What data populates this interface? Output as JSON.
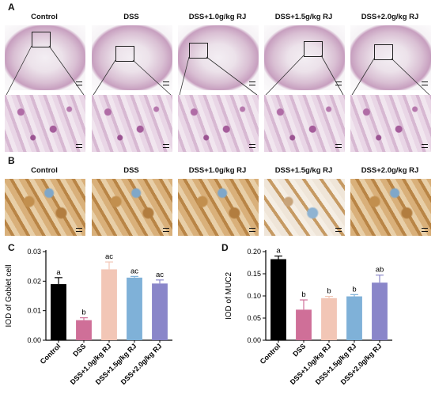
{
  "panels": {
    "A": "A",
    "B": "B",
    "C": "C",
    "D": "D"
  },
  "columns": [
    "Control",
    "DSS",
    "DSS+1.0g/kg RJ",
    "DSS+1.5g/kg RJ",
    "DSS+2.0g/kg RJ"
  ],
  "chart_data": [
    {
      "type": "bar",
      "panel": "C",
      "ylabel": "IOD of Goblet cell",
      "categories": [
        "Control",
        "DSS",
        "DSS+1.0g/kg RJ",
        "DSS+1.5g/kg RJ",
        "DSS+2.0g/kg RJ"
      ],
      "values": [
        0.019,
        0.0068,
        0.024,
        0.0212,
        0.0192
      ],
      "errors": [
        0.0022,
        0.0008,
        0.0025,
        0.0004,
        0.0012
      ],
      "letters": [
        "a",
        "b",
        "ac",
        "ac",
        "ac"
      ],
      "colors": [
        "#000000",
        "#cf6f98",
        "#f2c6b6",
        "#7fb1d8",
        "#8a86c9"
      ],
      "ylim": [
        0,
        0.03
      ],
      "yticks": [
        "0.00",
        "0.01",
        "0.02",
        "0.03"
      ],
      "ytick_values": [
        0,
        0.01,
        0.02,
        0.03
      ]
    },
    {
      "type": "bar",
      "panel": "D",
      "ylabel": "IOD of MUC2",
      "categories": [
        "Control",
        "DSS",
        "DSS+1.0g/kg RJ",
        "DSS+1.5g/kg RJ",
        "DSS+2.0g/kg RJ"
      ],
      "values": [
        0.183,
        0.069,
        0.095,
        0.099,
        0.13
      ],
      "errors": [
        0.007,
        0.022,
        0.004,
        0.004,
        0.017
      ],
      "letters": [
        "a",
        "b",
        "b",
        "b",
        "ab"
      ],
      "colors": [
        "#000000",
        "#cf6f98",
        "#f2c6b6",
        "#7fb1d8",
        "#8a86c9"
      ],
      "ylim": [
        0,
        0.2
      ],
      "yticks": [
        "0.00",
        "0.05",
        "0.10",
        "0.15",
        "0.20"
      ],
      "ytick_values": [
        0,
        0.05,
        0.1,
        0.15,
        0.2
      ]
    }
  ]
}
